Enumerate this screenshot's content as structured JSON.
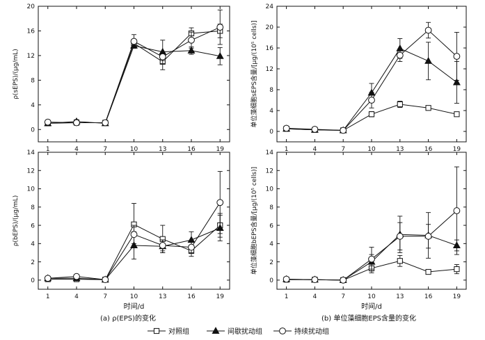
{
  "chart_data": [
    {
      "panel": "top-left",
      "type": "line",
      "ylabel": "ρ(sEPS)/(μg/mL)",
      "x": [
        1,
        4,
        7,
        10,
        13,
        16,
        19
      ],
      "xticks": [
        "1",
        "4",
        "7",
        "10",
        "13",
        "16",
        "19"
      ],
      "ylim": [
        -2,
        20
      ],
      "yticks": [
        "0",
        "4",
        "8",
        "12",
        "16",
        "20"
      ],
      "series": [
        {
          "name": "对照组",
          "marker": "square",
          "values": [
            1.0,
            1.1,
            1.1,
            14.0,
            11.0,
            15.6,
            16.0
          ],
          "err": [
            0.2,
            0.2,
            0.2,
            0.5,
            1.3,
            0.9,
            1.1
          ]
        },
        {
          "name": "间歇扰动组",
          "marker": "triangle",
          "values": [
            1.0,
            1.3,
            1.0,
            13.6,
            12.6,
            12.8,
            11.9
          ],
          "err": [
            0.2,
            0.3,
            0.2,
            0.4,
            1.9,
            0.6,
            1.4
          ]
        },
        {
          "name": "持续扰动组",
          "marker": "circle",
          "values": [
            1.2,
            1.1,
            1.1,
            14.3,
            11.8,
            14.5,
            16.6
          ],
          "err": [
            0.3,
            0.2,
            0.2,
            1.1,
            0.6,
            1.3,
            2.8
          ]
        }
      ]
    },
    {
      "panel": "top-right",
      "type": "line",
      "ylabel": "单位藻细胞sEPS含量/[μg/(10⁵ cells)]",
      "x": [
        1,
        4,
        7,
        10,
        13,
        16,
        19
      ],
      "xticks": [
        "1",
        "4",
        "7",
        "10",
        "13",
        "16",
        "19"
      ],
      "ylim": [
        -2,
        24
      ],
      "yticks": [
        "0",
        "4",
        "8",
        "12",
        "16",
        "20",
        "24"
      ],
      "series": [
        {
          "name": "对照组",
          "marker": "square",
          "values": [
            0.5,
            0.3,
            0.2,
            3.3,
            5.2,
            4.5,
            3.3
          ],
          "err": [
            0.1,
            0.1,
            0.1,
            0.5,
            0.6,
            0.3,
            0.4
          ]
        },
        {
          "name": "间歇扰动组",
          "marker": "triangle",
          "values": [
            0.5,
            0.3,
            0.2,
            7.4,
            15.9,
            13.5,
            9.4
          ],
          "err": [
            0.1,
            0.1,
            0.1,
            1.8,
            1.9,
            3.6,
            4.0
          ]
        },
        {
          "name": "持续扰动组",
          "marker": "circle",
          "values": [
            0.6,
            0.4,
            0.2,
            6.0,
            14.6,
            19.4,
            14.4
          ],
          "err": [
            0.1,
            0.1,
            0.1,
            1.5,
            1.2,
            1.5,
            4.6
          ]
        }
      ]
    },
    {
      "panel": "bottom-left",
      "type": "line",
      "ylabel": "ρ(bEPS)/(μg/mL)",
      "xlabel": "时间/d",
      "x": [
        1,
        4,
        7,
        10,
        13,
        16,
        19
      ],
      "xticks": [
        "1",
        "4",
        "7",
        "10",
        "13",
        "16",
        "19"
      ],
      "ylim": [
        -1,
        14
      ],
      "yticks": [
        "0",
        "2",
        "4",
        "6",
        "8",
        "10",
        "12",
        "14"
      ],
      "series": [
        {
          "name": "对照组",
          "marker": "square",
          "values": [
            0.1,
            0.1,
            0.05,
            6.1,
            4.5,
            3.2,
            6.0
          ],
          "err": [
            0.1,
            0.1,
            0.05,
            2.3,
            1.5,
            0.6,
            1.3
          ]
        },
        {
          "name": "间歇扰动组",
          "marker": "triangle",
          "values": [
            0.2,
            0.2,
            0.05,
            3.8,
            3.7,
            4.4,
            5.7
          ],
          "err": [
            0.1,
            0.1,
            0.05,
            1.5,
            0.7,
            0.9,
            1.4
          ]
        },
        {
          "name": "持续扰动组",
          "marker": "circle",
          "values": [
            0.2,
            0.4,
            0.05,
            5.0,
            3.8,
            3.6,
            8.5
          ],
          "err": [
            0.1,
            0.2,
            0.05,
            1.0,
            0.6,
            0.6,
            3.4
          ]
        }
      ]
    },
    {
      "panel": "bottom-right",
      "type": "line",
      "ylabel": "单位藻细胞bEPS含量/[μg/(10⁵ cells)]",
      "xlabel": "时间/d",
      "x": [
        1,
        4,
        7,
        10,
        13,
        16,
        19
      ],
      "xticks": [
        "1",
        "4",
        "7",
        "10",
        "13",
        "16",
        "19"
      ],
      "ylim": [
        -1,
        14
      ],
      "yticks": [
        "0",
        "2",
        "4",
        "6",
        "8",
        "10",
        "12",
        "14"
      ],
      "series": [
        {
          "name": "对照组",
          "marker": "square",
          "values": [
            0.05,
            0.05,
            0.0,
            1.3,
            2.1,
            0.9,
            1.2
          ],
          "err": [
            0.05,
            0.05,
            0.02,
            0.5,
            0.6,
            0.2,
            0.5
          ]
        },
        {
          "name": "间歇扰动组",
          "marker": "triangle",
          "values": [
            0.1,
            0.05,
            0.0,
            2.0,
            5.0,
            4.9,
            3.8
          ],
          "err": [
            0.05,
            0.05,
            0.02,
            0.8,
            2.0,
            2.5,
            0.6
          ]
        },
        {
          "name": "持续扰动组",
          "marker": "circle",
          "values": [
            0.1,
            0.05,
            0.0,
            2.3,
            4.8,
            4.8,
            7.6
          ],
          "err": [
            0.05,
            0.05,
            0.02,
            1.3,
            1.5,
            1.3,
            4.8
          ]
        }
      ]
    }
  ],
  "captions": {
    "left": "(a) ρ(EPS)的变化",
    "right": "(b) 单位藻细胞EPS含量的变化"
  },
  "legend": {
    "items": [
      {
        "label": "对照组",
        "marker": "square"
      },
      {
        "label": "间歇扰动组",
        "marker": "triangle"
      },
      {
        "label": "持续扰动组",
        "marker": "circle"
      }
    ]
  }
}
